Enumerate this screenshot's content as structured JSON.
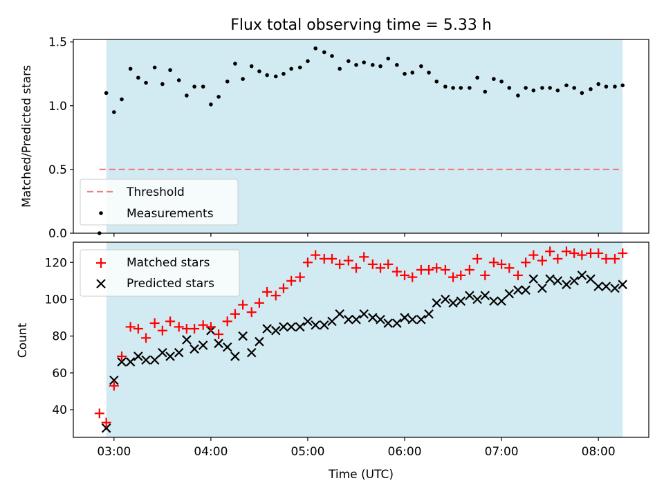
{
  "title": "Flux total observing time = 5.33 h",
  "colors": {
    "shade": "#add8e6",
    "threshold": "#f08080",
    "matched": "#ff0000",
    "predicted": "#000000",
    "measure": "#000000"
  },
  "chart_data": [
    {
      "type": "scatter",
      "ylabel": "Matched/Predicted stars",
      "xlim_hours": [
        2.58,
        8.52
      ],
      "ylim": [
        0,
        1.52
      ],
      "yticks": [
        "0.0",
        "0.5",
        "1.0",
        "1.5"
      ],
      "shaded_span_hours": [
        2.92,
        8.25
      ],
      "threshold": {
        "value": 0.5,
        "x_start_hours": 2.85,
        "x_end_hours": 8.25
      },
      "legend": {
        "position": "lower-left",
        "entries": [
          "Threshold",
          "Measurements"
        ]
      },
      "series": [
        {
          "name": "Measurements",
          "x_hours": [
            2.85,
            2.92,
            3.0,
            3.08,
            3.17,
            3.25,
            3.33,
            3.42,
            3.5,
            3.58,
            3.67,
            3.75,
            3.83,
            3.92,
            4.0,
            4.08,
            4.17,
            4.25,
            4.33,
            4.42,
            4.5,
            4.58,
            4.67,
            4.75,
            4.83,
            4.92,
            5.0,
            5.08,
            5.17,
            5.25,
            5.33,
            5.42,
            5.5,
            5.58,
            5.67,
            5.75,
            5.83,
            5.92,
            6.0,
            6.08,
            6.17,
            6.25,
            6.33,
            6.42,
            6.5,
            6.58,
            6.67,
            6.75,
            6.83,
            6.92,
            7.0,
            7.08,
            7.17,
            7.25,
            7.33,
            7.42,
            7.5,
            7.58,
            7.67,
            7.75,
            7.83,
            7.92,
            8.0,
            8.08,
            8.17,
            8.25
          ],
          "y": [
            0.0,
            1.1,
            0.95,
            1.05,
            1.29,
            1.22,
            1.18,
            1.3,
            1.17,
            1.28,
            1.2,
            1.08,
            1.15,
            1.15,
            1.01,
            1.07,
            1.19,
            1.33,
            1.21,
            1.31,
            1.27,
            1.24,
            1.23,
            1.25,
            1.29,
            1.3,
            1.35,
            1.45,
            1.42,
            1.39,
            1.29,
            1.35,
            1.32,
            1.34,
            1.32,
            1.31,
            1.37,
            1.32,
            1.25,
            1.26,
            1.31,
            1.26,
            1.19,
            1.15,
            1.14,
            1.14,
            1.14,
            1.22,
            1.11,
            1.21,
            1.19,
            1.14,
            1.08,
            1.14,
            1.12,
            1.14,
            1.14,
            1.12,
            1.16,
            1.14,
            1.1,
            1.13,
            1.17,
            1.15,
            1.15,
            1.16
          ]
        }
      ]
    },
    {
      "type": "scatter",
      "xlabel": "Time (UTC)",
      "ylabel": "Count",
      "xlim_hours": [
        2.58,
        8.52
      ],
      "ylim": [
        25,
        131
      ],
      "yticks": [
        "40",
        "60",
        "80",
        "100",
        "120"
      ],
      "xticks": [
        "03:00",
        "04:00",
        "05:00",
        "06:00",
        "07:00",
        "08:00"
      ],
      "shaded_span_hours": [
        2.92,
        8.25
      ],
      "legend": {
        "position": "upper-left",
        "entries": [
          "Matched stars",
          "Predicted stars"
        ]
      },
      "series": [
        {
          "name": "Matched stars",
          "x_hours": [
            2.85,
            2.92,
            3.0,
            3.08,
            3.17,
            3.25,
            3.33,
            3.42,
            3.5,
            3.58,
            3.67,
            3.75,
            3.83,
            3.92,
            4.0,
            4.08,
            4.17,
            4.25,
            4.33,
            4.42,
            4.5,
            4.58,
            4.67,
            4.75,
            4.83,
            4.92,
            5.0,
            5.08,
            5.17,
            5.25,
            5.33,
            5.42,
            5.5,
            5.58,
            5.67,
            5.75,
            5.83,
            5.92,
            6.0,
            6.08,
            6.17,
            6.25,
            6.33,
            6.42,
            6.5,
            6.58,
            6.67,
            6.75,
            6.83,
            6.92,
            7.0,
            7.08,
            7.17,
            7.25,
            7.33,
            7.42,
            7.5,
            7.58,
            7.67,
            7.75,
            7.83,
            7.92,
            8.0,
            8.08,
            8.17,
            8.25
          ],
          "y": [
            38,
            33,
            53,
            69,
            85,
            84,
            79,
            87,
            83,
            88,
            85,
            84,
            84,
            86,
            85,
            81,
            88,
            92,
            97,
            93,
            98,
            104,
            102,
            106,
            110,
            112,
            120,
            124,
            122,
            122,
            119,
            121,
            117,
            123,
            119,
            117,
            119,
            115,
            113,
            112,
            116,
            116,
            117,
            116,
            112,
            113,
            116,
            122,
            113,
            120,
            119,
            117,
            113,
            120,
            124,
            121,
            126,
            122,
            126,
            125,
            124,
            125,
            125,
            122,
            122,
            125
          ]
        },
        {
          "name": "Predicted stars",
          "x_hours": [
            2.92,
            3.0,
            3.08,
            3.17,
            3.25,
            3.33,
            3.42,
            3.5,
            3.58,
            3.67,
            3.75,
            3.83,
            3.92,
            4.0,
            4.08,
            4.17,
            4.25,
            4.33,
            4.42,
            4.5,
            4.58,
            4.67,
            4.75,
            4.83,
            4.92,
            5.0,
            5.08,
            5.17,
            5.25,
            5.33,
            5.42,
            5.5,
            5.58,
            5.67,
            5.75,
            5.83,
            5.92,
            6.0,
            6.08,
            6.17,
            6.25,
            6.33,
            6.42,
            6.5,
            6.58,
            6.67,
            6.75,
            6.83,
            6.92,
            7.0,
            7.08,
            7.17,
            7.25,
            7.33,
            7.42,
            7.5,
            7.58,
            7.67,
            7.75,
            7.83,
            7.92,
            8.0,
            8.08,
            8.17,
            8.25
          ],
          "y": [
            30,
            56,
            66,
            66,
            69,
            67,
            67,
            71,
            69,
            71,
            78,
            73,
            75,
            83,
            76,
            74,
            69,
            80,
            71,
            77,
            84,
            83,
            85,
            85,
            85,
            88,
            86,
            86,
            88,
            92,
            89,
            89,
            92,
            90,
            89,
            87,
            87,
            90,
            89,
            89,
            92,
            98,
            100,
            98,
            99,
            102,
            100,
            102,
            99,
            99,
            103,
            105,
            105,
            111,
            106,
            111,
            110,
            108,
            110,
            113,
            111,
            107,
            107,
            106,
            108
          ]
        }
      ]
    }
  ]
}
